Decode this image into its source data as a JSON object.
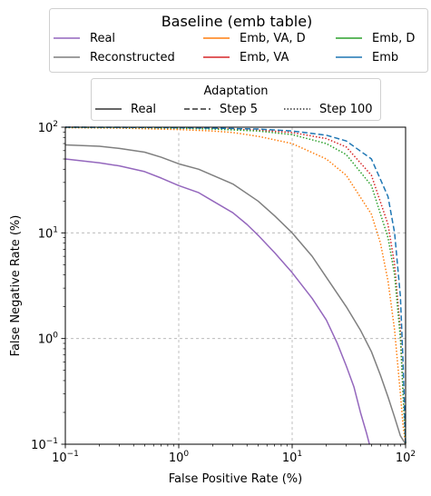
{
  "chart_data": {
    "type": "line",
    "xlabel": "False Positive Rate (%)",
    "ylabel": "False Negative Rate (%)",
    "xscale": "log",
    "yscale": "log",
    "xlim": [
      0.1,
      100
    ],
    "ylim": [
      0.1,
      100
    ],
    "grid": true,
    "x_ticks": [
      {
        "value": 0.1,
        "base": "10",
        "exp": "−1"
      },
      {
        "value": 1,
        "base": "10",
        "exp": "0"
      },
      {
        "value": 10,
        "base": "10",
        "exp": "1"
      },
      {
        "value": 100,
        "base": "10",
        "exp": "2"
      }
    ],
    "y_ticks": [
      {
        "value": 0.1,
        "base": "10",
        "exp": "−1"
      },
      {
        "value": 1,
        "base": "10",
        "exp": "0"
      },
      {
        "value": 10,
        "base": "10",
        "exp": "1"
      },
      {
        "value": 100,
        "base": "10",
        "exp": "2"
      }
    ],
    "legend_baseline": {
      "title": "Baseline (emb table)",
      "placement": "above plot",
      "entries": [
        {
          "label": "Real",
          "color": "#9467bd"
        },
        {
          "label": "Reconstructed",
          "color": "#7f7f7f"
        },
        {
          "label": "Emb, VA, D",
          "color": "#ff7f0e"
        },
        {
          "label": "Emb, VA",
          "color": "#d62728"
        },
        {
          "label": "Emb, D",
          "color": "#2ca02c"
        },
        {
          "label": "Emb",
          "color": "#1f77b4"
        }
      ]
    },
    "legend_adaptation": {
      "title": "Adaptation",
      "placement": "above plot",
      "entries": [
        {
          "label": "Real",
          "style": "solid"
        },
        {
          "label": "Step 5",
          "style": "dashed"
        },
        {
          "label": "Step 100",
          "style": "dotted"
        }
      ]
    },
    "series": [
      {
        "name": "Real",
        "color": "#9467bd",
        "style": "solid",
        "x": [
          0.1,
          0.2,
          0.3,
          0.5,
          0.7,
          1,
          1.5,
          2,
          3,
          4,
          5,
          7,
          10,
          15,
          20,
          25,
          30,
          35,
          40,
          45,
          48
        ],
        "y": [
          50,
          46,
          43,
          38,
          33,
          28,
          24,
          20,
          15.5,
          12,
          9.5,
          6.5,
          4.2,
          2.4,
          1.5,
          0.9,
          0.55,
          0.35,
          0.2,
          0.13,
          0.1
        ]
      },
      {
        "name": "Reconstructed",
        "color": "#7f7f7f",
        "style": "solid",
        "x": [
          0.1,
          0.2,
          0.3,
          0.5,
          0.7,
          1,
          1.5,
          2,
          3,
          5,
          7,
          10,
          15,
          20,
          30,
          40,
          50,
          60,
          70,
          80,
          90,
          100
        ],
        "y": [
          68,
          66,
          63,
          58,
          52,
          45,
          40,
          35,
          29,
          20,
          14.5,
          10,
          6,
          3.8,
          2,
          1.2,
          0.75,
          0.45,
          0.28,
          0.18,
          0.12,
          0.1
        ]
      },
      {
        "name": "Emb, VA, D",
        "color": "#ff7f0e",
        "style": "dotted",
        "x": [
          0.1,
          0.3,
          1,
          2,
          3,
          5,
          10,
          20,
          30,
          50,
          60,
          70,
          80,
          90,
          95,
          100
        ],
        "y": [
          99,
          98,
          95,
          92,
          89,
          82,
          70,
          50,
          35,
          15,
          8,
          3.5,
          1.2,
          0.3,
          0.15,
          0.1
        ]
      },
      {
        "name": "Emb, VA",
        "color": "#d62728",
        "style": "dotted",
        "x": [
          0.1,
          0.5,
          1,
          2,
          5,
          10,
          20,
          30,
          50,
          70,
          80,
          90,
          95,
          100
        ],
        "y": [
          100,
          99,
          98,
          97,
          94,
          89,
          78,
          65,
          35,
          12,
          5,
          1.2,
          0.3,
          0.1
        ]
      },
      {
        "name": "Emb, D",
        "color": "#2ca02c",
        "style": "dotted",
        "x": [
          0.1,
          0.5,
          1,
          2,
          5,
          10,
          20,
          30,
          50,
          70,
          80,
          90,
          95,
          100
        ],
        "y": [
          99.5,
          99,
          98,
          96,
          92,
          85,
          70,
          55,
          28,
          9,
          4,
          1,
          0.3,
          0.1
        ]
      },
      {
        "name": "Emb",
        "color": "#1f77b4",
        "style": "dashed",
        "x": [
          0.1,
          0.5,
          1,
          2,
          5,
          10,
          20,
          30,
          50,
          70,
          80,
          90,
          95,
          100
        ],
        "y": [
          100,
          99.5,
          99,
          98,
          96,
          92,
          84,
          74,
          50,
          22,
          10,
          2.5,
          0.6,
          0.1
        ]
      }
    ]
  }
}
